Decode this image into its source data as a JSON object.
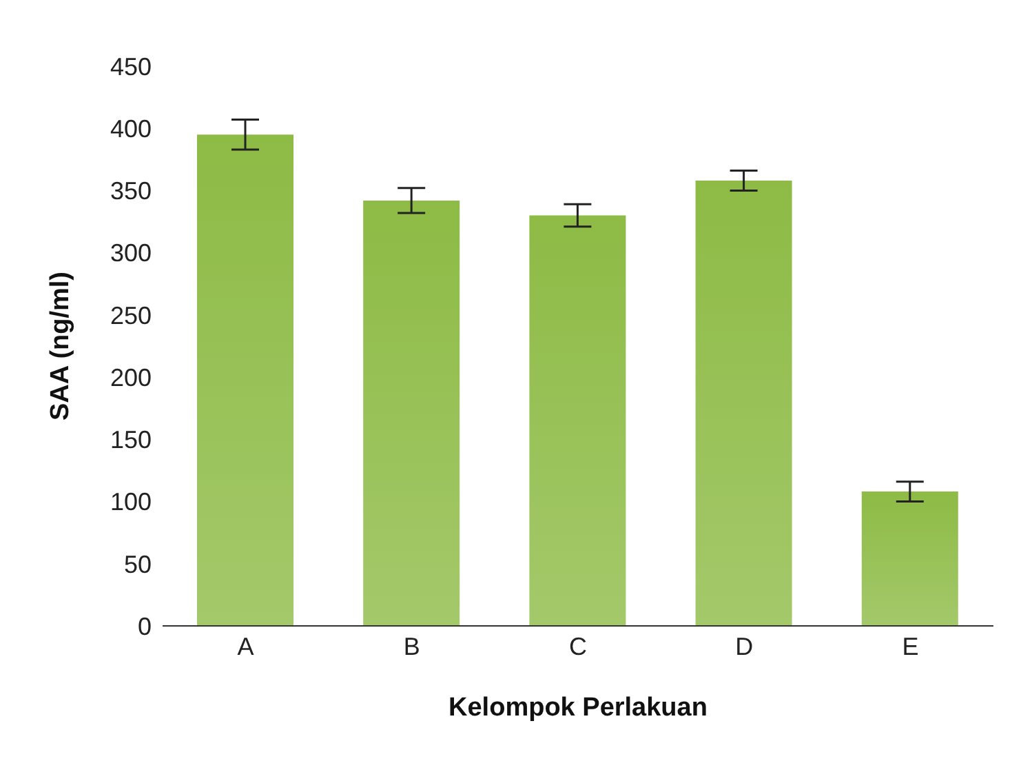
{
  "chart_data": {
    "type": "bar",
    "xlabel": "Kelompok Perlakuan",
    "ylabel": "SAA (ng/ml)",
    "categories": [
      "A",
      "B",
      "C",
      "D",
      "E"
    ],
    "values": [
      395,
      342,
      330,
      358,
      108
    ],
    "errors": [
      12,
      10,
      9,
      8,
      8
    ],
    "color": "#8dbb45",
    "ylim": [
      0,
      450
    ],
    "yticks": [
      0,
      50,
      100,
      150,
      200,
      250,
      300,
      350,
      400,
      450
    ],
    "grid": false
  }
}
